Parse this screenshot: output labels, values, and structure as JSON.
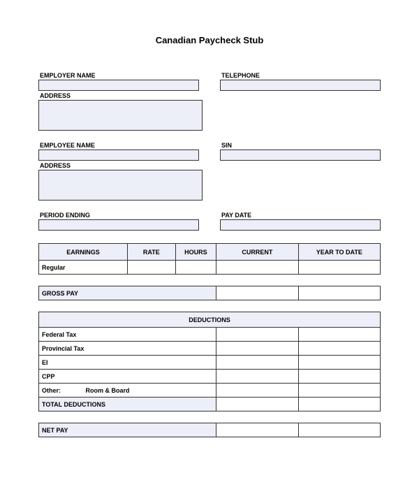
{
  "title": "Canadian Paycheck Stub",
  "employer": {
    "name_label": "EMPLOYER NAME",
    "telephone_label": "TELEPHONE",
    "address_label": "ADDRESS"
  },
  "employee": {
    "name_label": "EMPLOYEE NAME",
    "sin_label": "SIN",
    "address_label": "ADDRESS"
  },
  "period": {
    "ending_label": "PERIOD ENDING",
    "paydate_label": "PAY DATE"
  },
  "earnings": {
    "headers": {
      "title": "EARNINGS",
      "rate": "RATE",
      "hours": "HOURS",
      "current": "CURRENT",
      "ytd": "YEAR TO DATE"
    },
    "row_regular": "Regular"
  },
  "gross_pay_label": "GROSS PAY",
  "deductions": {
    "header": "DEDUCTIONS",
    "federal": "Federal Tax",
    "provincial": "Provincial Tax",
    "ei": "EI",
    "cpp": "CPP",
    "other_label": "Other:",
    "other_value": "Room & Board",
    "total": "TOTAL DEDUCTIONS"
  },
  "net_pay_label": "NET PAY",
  "colors": {
    "fill": "#eceef8",
    "border": "#333333",
    "background": "#ffffff"
  }
}
